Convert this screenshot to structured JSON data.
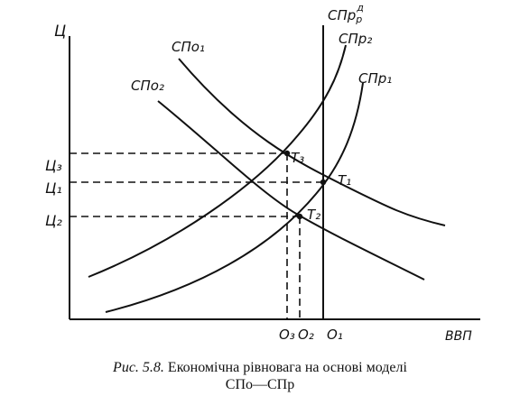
{
  "labels": {
    "y_axis": "Ц",
    "x_axis": "ВВП",
    "ad1": "СПо₁",
    "ad2": "СПо₂",
    "as_vertical": "СПр",
    "as_vertical_sup": "д",
    "as_vertical_sub": "р",
    "as1": "СПр₁",
    "as2": "СПр₂",
    "p1": "Ц₁",
    "p2": "Ц₂",
    "p3": "Ц₃",
    "q1": "О₁",
    "q2": "О₂",
    "q3": "О₃",
    "t1": "Т₁",
    "t2": "Т₂",
    "t3": "Т₃"
  },
  "caption": {
    "number": "Рис. 5.8.",
    "line1": "Економічна рівновага на основі моделі",
    "line2": "СПо—СПр"
  }
}
